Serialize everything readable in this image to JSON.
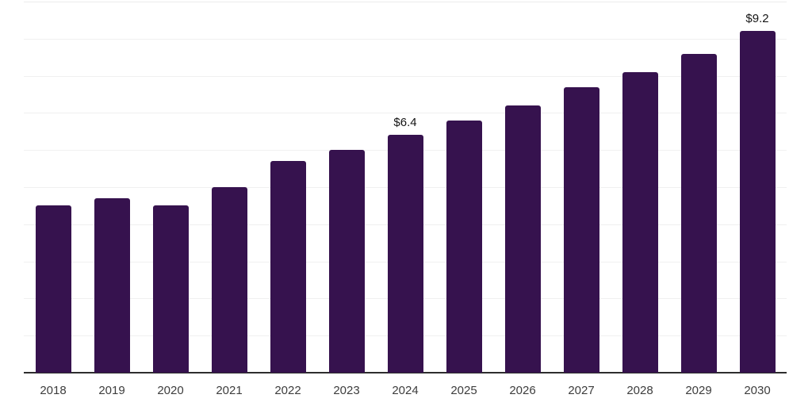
{
  "chart_data": {
    "type": "bar",
    "title": "",
    "xlabel": "",
    "ylabel": "",
    "categories": [
      "2018",
      "2019",
      "2020",
      "2021",
      "2022",
      "2023",
      "2024",
      "2025",
      "2026",
      "2027",
      "2028",
      "2029",
      "2030"
    ],
    "values": [
      4.5,
      4.7,
      4.5,
      5.0,
      5.7,
      6.0,
      6.4,
      6.8,
      7.2,
      7.7,
      8.1,
      8.6,
      9.2
    ],
    "value_labels": {
      "2024": "$6.4",
      "2030": "$9.2"
    },
    "ylim": [
      0,
      10
    ],
    "grid_step": 1,
    "grid": "horizontal-only",
    "legend_position": "none",
    "colors": {
      "bar": "#36124E",
      "axis": "#2E2E2E",
      "gridline": "#F0F0F0",
      "top_gridline": "#ECECEC",
      "tick_label": "#3D3D3D",
      "value_label": "#141414",
      "background": "#FFFFFF"
    }
  }
}
